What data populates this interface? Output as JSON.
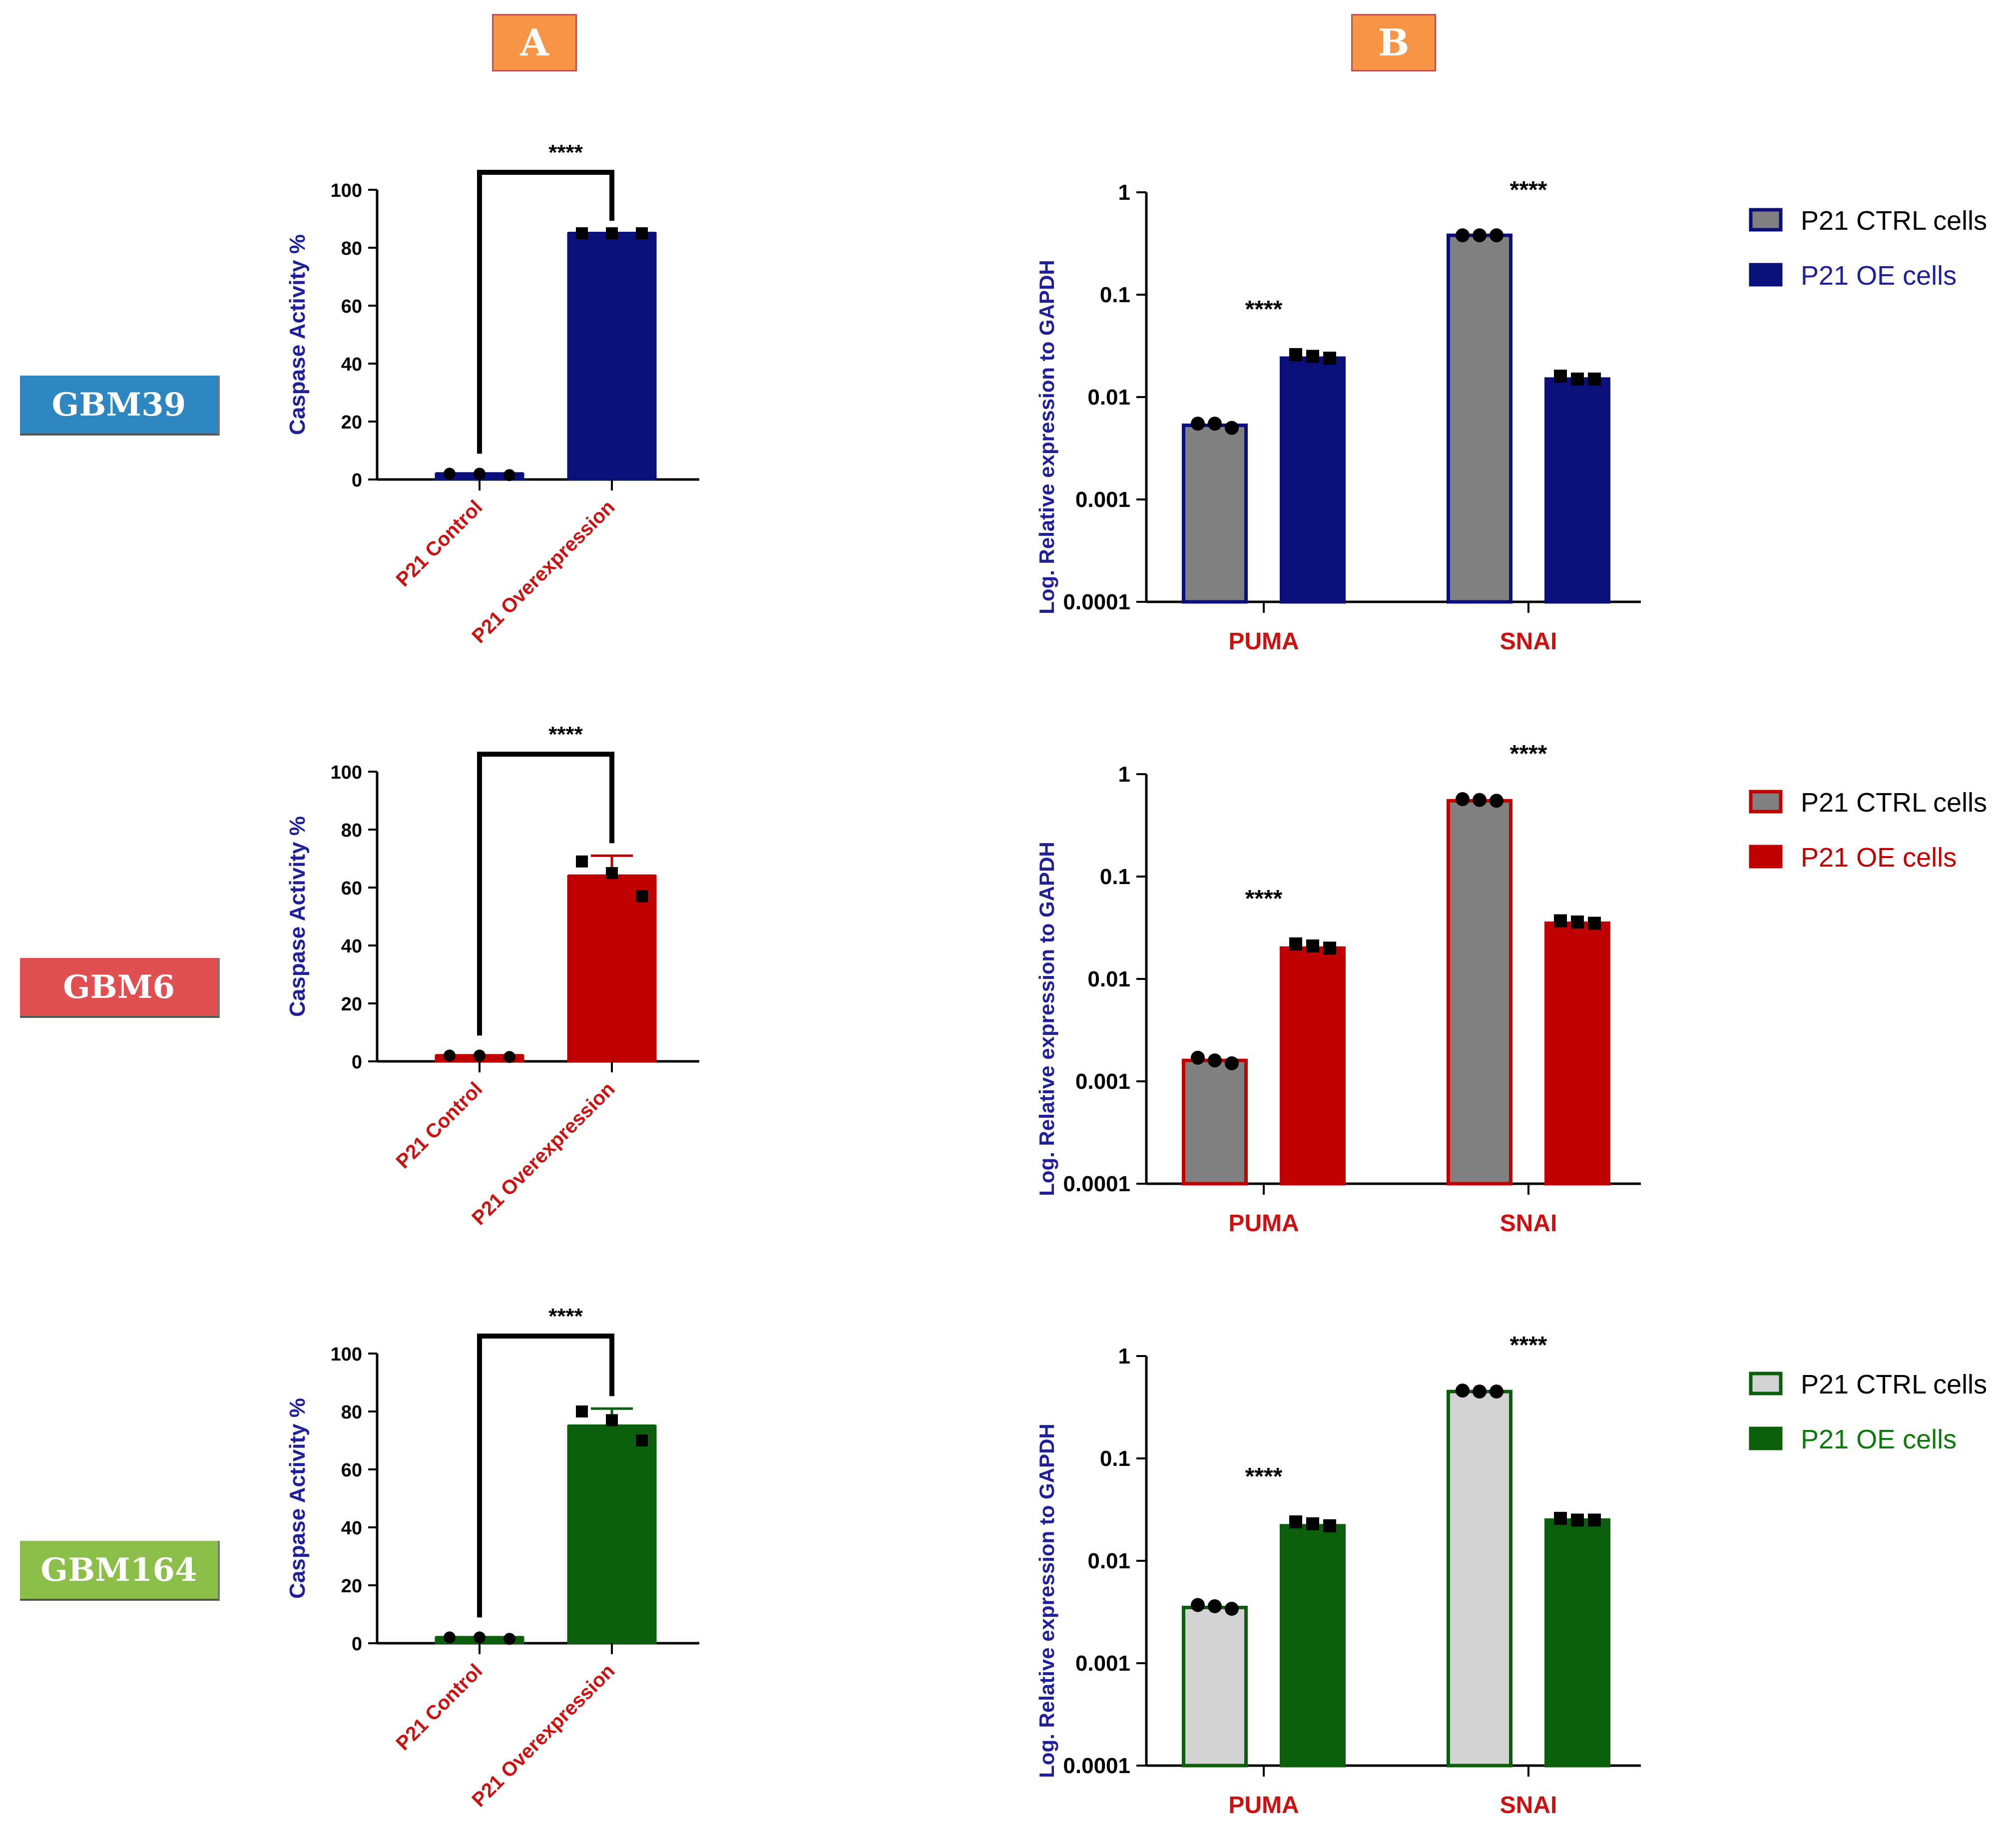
{
  "panels": {
    "a": "A",
    "b": "B"
  },
  "colors": {
    "panel_badge": "#f79646",
    "panel_badge_border": "#c0504d",
    "axis_title": "#1f1f9a",
    "category_label": "#cc1111",
    "ctrl_gray": "#808080",
    "ctrl_light": "#d3d3d3"
  },
  "rows": [
    {
      "label": "GBM39",
      "label_bg": "#2e86c1",
      "color": "#0b0f7a",
      "legend_text_color": "#1f1f9a"
    },
    {
      "label": "GBM6",
      "label_bg": "#e05050",
      "color": "#c00000",
      "legend_text_color": "#c00000"
    },
    {
      "label": "GBM164",
      "label_bg": "#8bbf4a",
      "color": "#0b5e0b",
      "legend_text_color": "#0b7a0b"
    }
  ],
  "chart_data": [
    {
      "type": "bar",
      "row": "GBM39",
      "panel": "A",
      "ylabel": "Caspase Activity %",
      "ylim": [
        0,
        100
      ],
      "yticks": [
        "0",
        "20",
        "40",
        "60",
        "80",
        "100"
      ],
      "categories": [
        "P21 Control",
        "P21 Overexpression"
      ],
      "values": [
        2,
        85
      ],
      "points": [
        [
          2,
          2,
          1.5
        ],
        [
          85,
          85,
          85
        ]
      ],
      "error": [
        null,
        null
      ],
      "significance": "****"
    },
    {
      "type": "bar",
      "row": "GBM39",
      "panel": "B",
      "scale": "log",
      "ylabel": "Log. Relative expression to GAPDH",
      "ylim": [
        0.0001,
        1
      ],
      "yticks": [
        "0.0001",
        "0.001",
        "0.01",
        "0.1",
        "1"
      ],
      "categories": [
        "PUMA",
        "SNAI"
      ],
      "series": [
        {
          "name": "P21 CTRL cells",
          "values": [
            0.0053,
            0.38
          ],
          "points": [
            [
              0.0055,
              0.0055,
              0.005
            ],
            [
              0.38,
              0.38,
              0.38
            ]
          ]
        },
        {
          "name": "P21 OE cells",
          "values": [
            0.024,
            0.015
          ],
          "points": [
            [
              0.026,
              0.025,
              0.024
            ],
            [
              0.016,
              0.015,
              0.015
            ]
          ]
        }
      ],
      "significance": [
        "****",
        "****"
      ]
    },
    {
      "type": "bar",
      "row": "GBM6",
      "panel": "A",
      "ylabel": "Caspase Activity %",
      "ylim": [
        0,
        100
      ],
      "yticks": [
        "0",
        "20",
        "40",
        "60",
        "80",
        "100"
      ],
      "categories": [
        "P21 Control",
        "P21 Overexpression"
      ],
      "values": [
        2,
        64
      ],
      "points": [
        [
          2,
          2,
          1.5
        ],
        [
          69,
          65,
          57
        ]
      ],
      "error": [
        null,
        71
      ],
      "significance": "****"
    },
    {
      "type": "bar",
      "row": "GBM6",
      "panel": "B",
      "scale": "log",
      "ylabel": "Log. Relative expression to GAPDH",
      "ylim": [
        0.0001,
        1
      ],
      "yticks": [
        "0.0001",
        "0.001",
        "0.01",
        "0.1",
        "1"
      ],
      "categories": [
        "PUMA",
        "SNAI"
      ],
      "series": [
        {
          "name": "P21 CTRL cells",
          "values": [
            0.0016,
            0.55
          ],
          "points": [
            [
              0.0017,
              0.0016,
              0.0015
            ],
            [
              0.57,
              0.56,
              0.55
            ]
          ]
        },
        {
          "name": "P21 OE cells",
          "values": [
            0.02,
            0.035
          ],
          "points": [
            [
              0.022,
              0.021,
              0.02
            ],
            [
              0.037,
              0.036,
              0.035
            ]
          ]
        }
      ],
      "significance": [
        "****",
        "****"
      ]
    },
    {
      "type": "bar",
      "row": "GBM164",
      "panel": "A",
      "ylabel": "Caspase Activity %",
      "ylim": [
        0,
        100
      ],
      "yticks": [
        "0",
        "20",
        "40",
        "60",
        "80",
        "100"
      ],
      "categories": [
        "P21 Control",
        "P21 Overexpression"
      ],
      "values": [
        2,
        75
      ],
      "points": [
        [
          2,
          2,
          1.5
        ],
        [
          80,
          77,
          70
        ]
      ],
      "error": [
        null,
        81
      ],
      "significance": "****"
    },
    {
      "type": "bar",
      "row": "GBM164",
      "panel": "B",
      "scale": "log",
      "ylabel": "Log. Relative expression to GAPDH",
      "ylim": [
        0.0001,
        1
      ],
      "yticks": [
        "0.0001",
        "0.001",
        "0.01",
        "0.1",
        "1"
      ],
      "categories": [
        "PUMA",
        "SNAI"
      ],
      "series": [
        {
          "name": "P21 CTRL cells",
          "values": [
            0.0035,
            0.45
          ],
          "points": [
            [
              0.0037,
              0.0036,
              0.0034
            ],
            [
              0.46,
              0.45,
              0.45
            ]
          ]
        },
        {
          "name": "P21 OE cells",
          "values": [
            0.022,
            0.025
          ],
          "points": [
            [
              0.024,
              0.023,
              0.022
            ],
            [
              0.026,
              0.025,
              0.025
            ]
          ]
        }
      ],
      "significance": [
        "****",
        "****"
      ]
    }
  ]
}
